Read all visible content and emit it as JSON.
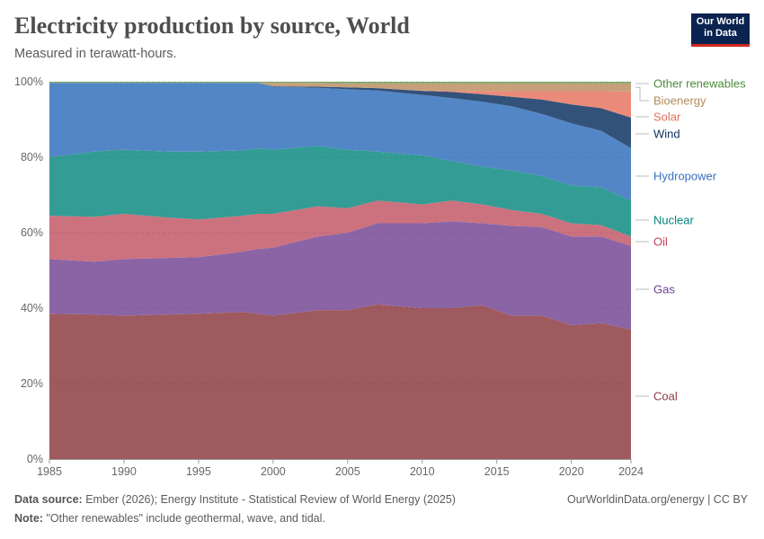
{
  "header": {
    "title": "Electricity production by source, World",
    "subtitle": "Measured in terawatt-hours.",
    "logo_text": "Our World in Data"
  },
  "footer": {
    "source_label": "Data source:",
    "source_text": "Ember (2026); Energy Institute - Statistical Review of World Energy (2025)",
    "note_label": "Note:",
    "note_text": "\"Other renewables\" include geothermal, wave, and tidal.",
    "credit": "OurWorldinData.org/energy | CC BY"
  },
  "chart_data": {
    "type": "area",
    "stacked": true,
    "relative": true,
    "ylim": [
      0,
      100
    ],
    "y_ticks": [
      "0%",
      "20%",
      "40%",
      "60%",
      "80%",
      "100%"
    ],
    "x_ticks": [
      "1985",
      "1990",
      "1995",
      "2000",
      "2005",
      "2010",
      "2015",
      "2020",
      "2024"
    ],
    "grid": "horizontal dashed",
    "legend": "right (inline labels)",
    "x": [
      1985,
      1988,
      1990,
      1993,
      1995,
      1998,
      1999,
      2000,
      2003,
      2005,
      2007,
      2010,
      2012,
      2014,
      2016,
      2018,
      2020,
      2022,
      2024
    ],
    "series": [
      {
        "name": "Coal",
        "color": "#9e5a5e",
        "label_color": "#8b3a45",
        "values": [
          38.5,
          38.3,
          38,
          38.3,
          38.5,
          39,
          38.5,
          38,
          39.5,
          39.5,
          41,
          40,
          40,
          40.8,
          38,
          38,
          35.5,
          36,
          34.3
        ]
      },
      {
        "name": "Gas",
        "color": "#8b64a6",
        "label_color": "#6d3e91",
        "values": [
          14.5,
          14,
          15,
          15,
          15,
          16,
          17.2,
          18,
          19.5,
          20.5,
          21.5,
          22.5,
          23,
          21.7,
          23.8,
          23.5,
          23.5,
          23,
          22.2
        ]
      },
      {
        "name": "Oil",
        "color": "#cc717e",
        "label_color": "#c0405a",
        "values": [
          11.5,
          11.9,
          12,
          10.7,
          10,
          9.5,
          9.3,
          9,
          8,
          6.5,
          6,
          5,
          5.5,
          5,
          4.2,
          3.5,
          3.5,
          3,
          2.5
        ]
      },
      {
        "name": "Nuclear",
        "color": "#339c94",
        "label_color": "#00847e",
        "values": [
          15.5,
          17.3,
          17,
          17.5,
          18,
          17.3,
          17.3,
          17,
          16,
          15.5,
          13,
          13,
          10.5,
          10,
          10.5,
          10,
          10,
          10,
          9.5
        ]
      },
      {
        "name": "Hydropower",
        "color": "#5286c6",
        "label_color": "#3a70c0",
        "values": [
          19.7,
          18.2,
          17.7,
          18.2,
          18.2,
          17.9,
          17.4,
          16.7,
          15.4,
          16,
          16.2,
          16,
          16.7,
          17.2,
          17,
          16.5,
          16.5,
          15,
          13.9
        ]
      },
      {
        "name": "Wind",
        "color": "#33527a",
        "label_color": "#0e2e5e",
        "values": [
          0,
          0,
          0,
          0,
          0,
          0,
          0,
          0.1,
          0.3,
          0.5,
          0.6,
          1.1,
          1.6,
          2,
          2.5,
          3.8,
          5,
          6,
          8.1
        ]
      },
      {
        "name": "Solar",
        "color": "#ea8a78",
        "label_color": "#e56e5a",
        "values": [
          0,
          0,
          0,
          0,
          0,
          0,
          0,
          0,
          0,
          0,
          0,
          0.1,
          0.3,
          0.9,
          1.5,
          2.2,
          3.5,
          4.5,
          6.9
        ]
      },
      {
        "name": "Bioenergy",
        "color": "#c6a07a",
        "label_color": "#b58a5a",
        "values": [
          0,
          0,
          0,
          0,
          0,
          0,
          0,
          0.9,
          1,
          1.1,
          1.3,
          1.9,
          2,
          2,
          2.1,
          2.1,
          2.1,
          2.1,
          2.2
        ]
      },
      {
        "name": "Other renewables",
        "color": "#7aa86a",
        "label_color": "#4e8a3c",
        "values": [
          0.3,
          0.3,
          0.3,
          0.3,
          0.3,
          0.3,
          0.3,
          0.3,
          0.3,
          0.4,
          0.4,
          0.4,
          0.4,
          0.4,
          0.4,
          0.4,
          0.4,
          0.4,
          0.4
        ]
      }
    ]
  }
}
